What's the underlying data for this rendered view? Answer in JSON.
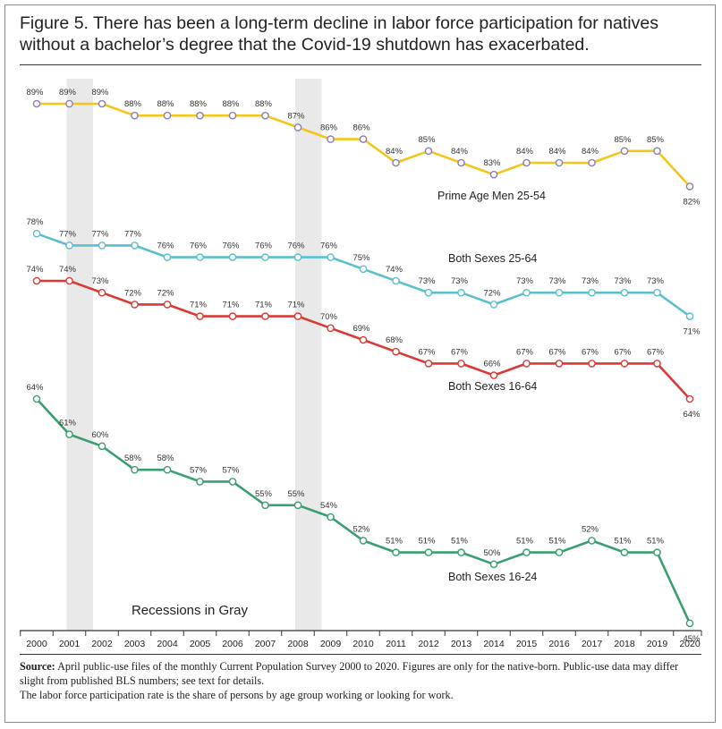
{
  "figure": {
    "title": "Figure 5. There has been a long-term decline in labor force participation for natives without a bachelor’s degree that the Covid-19 shutdown has exacerbated.",
    "source_label": "Source:",
    "source_text": "April public-use files of the monthly Current Population Survey 2000 to 2020. Figures are only for the native-born. Public-use data may differ slight from published BLS numbers; see text for details.",
    "note": "The labor force participation rate is the share of persons by age group working or looking for work."
  },
  "chart_data": {
    "type": "line",
    "title": "",
    "xlabel": "",
    "ylabel": "",
    "x": [
      2000,
      2001,
      2002,
      2003,
      2004,
      2005,
      2006,
      2007,
      2008,
      2009,
      2010,
      2011,
      2012,
      2013,
      2014,
      2015,
      2016,
      2017,
      2018,
      2019,
      2020
    ],
    "series": [
      {
        "name": "Prime Age Men 25-54",
        "color": "#f5c518",
        "values": [
          89,
          89,
          89,
          88,
          88,
          88,
          88,
          88,
          87,
          86,
          86,
          84,
          85,
          84,
          83,
          84,
          84,
          84,
          85,
          85,
          82
        ],
        "labels": [
          "89%",
          "89%",
          "89%",
          "88%",
          "88%",
          "88%",
          "88%",
          "88%",
          "87%",
          "86%",
          "86%",
          "84%",
          "85%",
          "84%",
          "83%",
          "84%",
          "84%",
          "84%",
          "85%",
          "85%",
          "82%"
        ]
      },
      {
        "name": "Both Sexes 25-64",
        "color": "#5bbfcf",
        "values": [
          78,
          77,
          77,
          77,
          76,
          76,
          76,
          76,
          76,
          76,
          75,
          74,
          73,
          73,
          72,
          73,
          73,
          73,
          73,
          73,
          71
        ],
        "labels": [
          "78%",
          "77%",
          "77%",
          "77%",
          "76%",
          "76%",
          "76%",
          "76%",
          "76%",
          "76%",
          "75%",
          "74%",
          "73%",
          "73%",
          "72%",
          "73%",
          "73%",
          "73%",
          "73%",
          "73%",
          "71%"
        ]
      },
      {
        "name": "Both Sexes 16-64",
        "color": "#d93a35",
        "values": [
          74,
          74,
          73,
          72,
          72,
          71,
          71,
          71,
          71,
          70,
          69,
          68,
          67,
          67,
          66,
          67,
          67,
          67,
          67,
          67,
          64
        ],
        "labels": [
          "74%",
          "74%",
          "73%",
          "72%",
          "72%",
          "71%",
          "71%",
          "71%",
          "71%",
          "70%",
          "69%",
          "68%",
          "67%",
          "67%",
          "66%",
          "67%",
          "67%",
          "67%",
          "67%",
          "67%",
          "64%"
        ]
      },
      {
        "name": "Both Sexes 16-24",
        "color": "#3a9e6e",
        "values": [
          64,
          61,
          60,
          58,
          58,
          57,
          57,
          55,
          55,
          54,
          52,
          51,
          51,
          51,
          50,
          51,
          51,
          52,
          51,
          51,
          45
        ],
        "labels": [
          "64%",
          "61%",
          "60%",
          "58%",
          "58%",
          "57%",
          "57%",
          "55%",
          "55%",
          "54%",
          "52%",
          "51%",
          "51%",
          "51%",
          "50%",
          "51%",
          "51%",
          "52%",
          "51%",
          "51%",
          "45%"
        ]
      }
    ],
    "recessions": [
      [
        2001,
        2002
      ],
      [
        2008,
        2009
      ]
    ],
    "recession_label": "Recessions in Gray",
    "recession_color": "#e9e9e9",
    "grid": false,
    "legend": "inline labels"
  }
}
